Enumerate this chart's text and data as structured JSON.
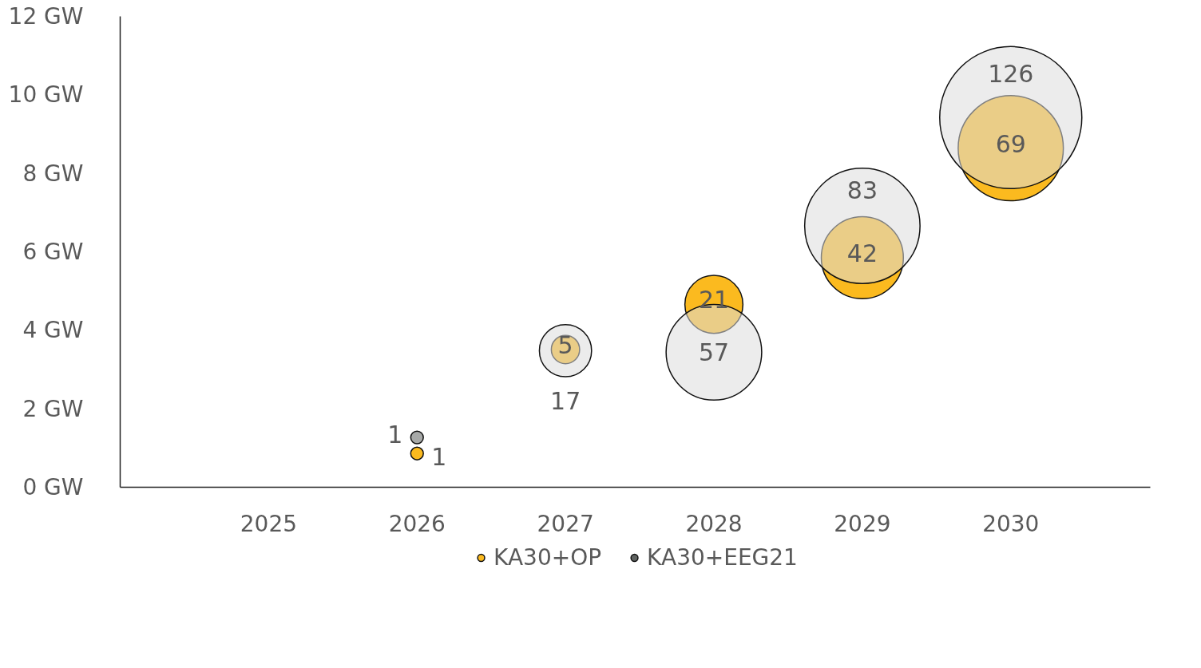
{
  "chart_data": {
    "type": "bubble",
    "categories": [
      "2025",
      "2026",
      "2027",
      "2028",
      "2029",
      "2030"
    ],
    "series": [
      {
        "name": "KA30+OP",
        "color": "#fbba1f",
        "values": [
          null,
          0.86,
          3.51,
          4.66,
          5.85,
          8.64
        ],
        "sizes": [
          null,
          1,
          5,
          21,
          42,
          69
        ],
        "value_labels": [
          null,
          "1",
          "5",
          "21",
          "42",
          "69"
        ]
      },
      {
        "name": "KA30+EEG21",
        "color": "#5f6361",
        "colors": [
          null,
          "#5f6361",
          "#dcdddc",
          "#dcdddc",
          "#dcdddc",
          "#dcdddc"
        ],
        "values": [
          null,
          1.27,
          3.48,
          3.44,
          6.66,
          9.42
        ],
        "sizes": [
          null,
          1,
          17,
          57,
          83,
          126
        ],
        "value_labels": [
          null,
          "1",
          "17",
          "57",
          "83",
          "126"
        ]
      }
    ],
    "ylim": [
      0,
      12
    ],
    "yticks": [
      {
        "value": 0,
        "label": "0 GW"
      },
      {
        "value": 2,
        "label": "2 GW"
      },
      {
        "value": 4,
        "label": "4 GW"
      },
      {
        "value": 6,
        "label": "6 GW"
      },
      {
        "value": 8,
        "label": "8 GW"
      },
      {
        "value": 10,
        "label": "10 GW"
      },
      {
        "value": 12,
        "label": "12 GW"
      }
    ],
    "grid": false,
    "legend": "bottom"
  }
}
